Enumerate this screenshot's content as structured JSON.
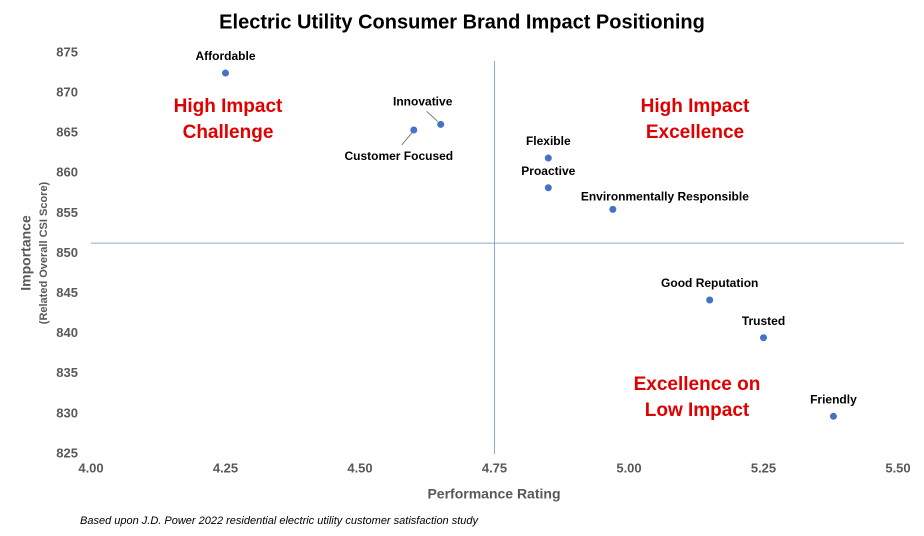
{
  "chart_data": {
    "type": "scatter",
    "title": "Electric Utility Consumer Brand Impact Positioning",
    "xlabel": "Performance Rating",
    "ylabel": "Importance",
    "ylabel_sub": "(Related Overall CSI Score)",
    "note": "Based upon J.D. Power 2022 residential electric utility customer satisfaction study",
    "point_labels": [
      "Affordable",
      "Innovative",
      "Customer Focused",
      "Flexible",
      "Proactive",
      "Environmentally Responsible",
      "Good Reputation",
      "Trusted",
      "Friendly"
    ],
    "x": [
      4.25,
      4.65,
      4.6,
      4.85,
      4.85,
      4.97,
      5.15,
      5.25,
      5.38
    ],
    "values": [
      872.5,
      866.1,
      865.4,
      861.9,
      858.2,
      855.5,
      844.2,
      839.5,
      829.7
    ],
    "color": "#4472c4",
    "reference_lines": {
      "x": 4.75,
      "y": 851.3,
      "color": "#8eaacb"
    },
    "annotations": [
      [
        "High Impact",
        "Challenge"
      ],
      [
        "High Impact",
        "Excellence"
      ],
      [
        "Excellence on",
        "Low Impact"
      ]
    ],
    "xlim": [
      4.0,
      5.5
    ],
    "xticks": [
      {
        "value": 4.0,
        "label": "4.00"
      },
      4.25,
      {
        "value": 4.5,
        "label": "4.50"
      },
      4.75,
      {
        "value": 5.0,
        "label": "5.00"
      },
      5.25,
      {
        "value": 5.5,
        "label": "5.50"
      }
    ],
    "ylim": [
      825,
      875
    ],
    "yticks": [
      825,
      830,
      835,
      840,
      845,
      850,
      855,
      860,
      865,
      870,
      875
    ]
  }
}
